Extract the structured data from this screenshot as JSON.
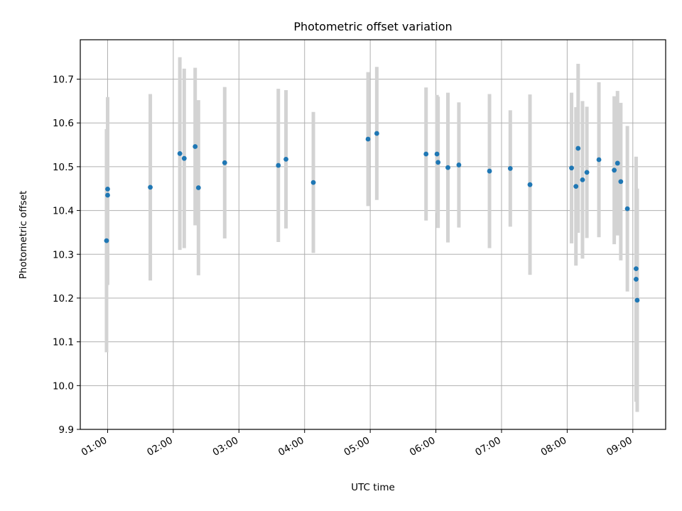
{
  "chart_data": {
    "type": "scatter",
    "title": "Photometric offset variation",
    "xlabel": "UTC time",
    "ylabel": "Photometric offset",
    "x_ticks": [
      "01:00",
      "02:00",
      "03:00",
      "04:00",
      "05:00",
      "06:00",
      "07:00",
      "08:00",
      "09:00"
    ],
    "y_ticks": [
      "9.9",
      "10.0",
      "10.1",
      "10.2",
      "10.3",
      "10.4",
      "10.5",
      "10.6",
      "10.7"
    ],
    "xlim": [
      "00:35",
      "09:30"
    ],
    "ylim": [
      9.9,
      10.79
    ],
    "grid": true,
    "colors": {
      "point": "#1f77b4",
      "errorbar": "#d3d3d3",
      "grid": "#b0b0b0"
    },
    "points": [
      {
        "x": "00:59",
        "y": 10.331,
        "err": 0.255
      },
      {
        "x": "01:00",
        "y": 10.449,
        "err": 0.21
      },
      {
        "x": "01:00",
        "y": 10.435,
        "err": 0.205
      },
      {
        "x": "01:39",
        "y": 10.453,
        "err": 0.213
      },
      {
        "x": "02:06",
        "y": 10.53,
        "err": 0.22
      },
      {
        "x": "02:10",
        "y": 10.519,
        "err": 0.205
      },
      {
        "x": "02:20",
        "y": 10.546,
        "err": 0.18
      },
      {
        "x": "02:23",
        "y": 10.452,
        "err": 0.2
      },
      {
        "x": "02:47",
        "y": 10.509,
        "err": 0.173
      },
      {
        "x": "03:36",
        "y": 10.503,
        "err": 0.175
      },
      {
        "x": "03:43",
        "y": 10.517,
        "err": 0.158
      },
      {
        "x": "04:08",
        "y": 10.464,
        "err": 0.161
      },
      {
        "x": "04:58",
        "y": 10.563,
        "err": 0.153
      },
      {
        "x": "05:06",
        "y": 10.576,
        "err": 0.152
      },
      {
        "x": "05:51",
        "y": 10.529,
        "err": 0.152
      },
      {
        "x": "06:01",
        "y": 10.529,
        "err": 0.135
      },
      {
        "x": "06:02",
        "y": 10.51,
        "err": 0.15
      },
      {
        "x": "06:11",
        "y": 10.498,
        "err": 0.171
      },
      {
        "x": "06:21",
        "y": 10.504,
        "err": 0.143
      },
      {
        "x": "06:49",
        "y": 10.49,
        "err": 0.176
      },
      {
        "x": "07:08",
        "y": 10.496,
        "err": 0.133
      },
      {
        "x": "07:26",
        "y": 10.459,
        "err": 0.206
      },
      {
        "x": "08:04",
        "y": 10.497,
        "err": 0.172
      },
      {
        "x": "08:08",
        "y": 10.455,
        "err": 0.181
      },
      {
        "x": "08:10",
        "y": 10.542,
        "err": 0.193
      },
      {
        "x": "08:14",
        "y": 10.47,
        "err": 0.18
      },
      {
        "x": "08:18",
        "y": 10.487,
        "err": 0.15
      },
      {
        "x": "08:29",
        "y": 10.516,
        "err": 0.177
      },
      {
        "x": "08:43",
        "y": 10.492,
        "err": 0.169
      },
      {
        "x": "08:46",
        "y": 10.508,
        "err": 0.165
      },
      {
        "x": "08:49",
        "y": 10.466,
        "err": 0.18
      },
      {
        "x": "08:55",
        "y": 10.404,
        "err": 0.189
      },
      {
        "x": "09:03",
        "y": 10.267,
        "err": 0.185
      },
      {
        "x": "09:03",
        "y": 10.243,
        "err": 0.28
      },
      {
        "x": "09:04",
        "y": 10.195,
        "err": 0.255
      }
    ]
  }
}
